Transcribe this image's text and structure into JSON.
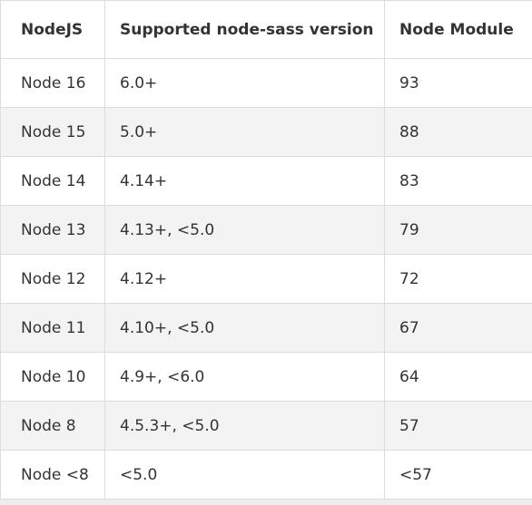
{
  "table": {
    "header": [
      "NodeJS",
      "Supported node-sass version",
      "Node Module"
    ],
    "rows": [
      [
        "Node 16",
        "6.0+",
        "93"
      ],
      [
        "Node 15",
        "5.0+",
        "88"
      ],
      [
        "Node 14",
        "4.14+",
        "83"
      ],
      [
        "Node 13",
        "4.13+, <5.0",
        "79"
      ],
      [
        "Node 12",
        "4.12+",
        "72"
      ],
      [
        "Node 11",
        "4.10+, <5.0",
        "67"
      ],
      [
        "Node 10",
        "4.9+, <6.0",
        "64"
      ],
      [
        "Node 8",
        "4.5.3+, <5.0",
        "57"
      ],
      [
        "Node <8",
        "<5.0",
        "<57"
      ]
    ]
  }
}
